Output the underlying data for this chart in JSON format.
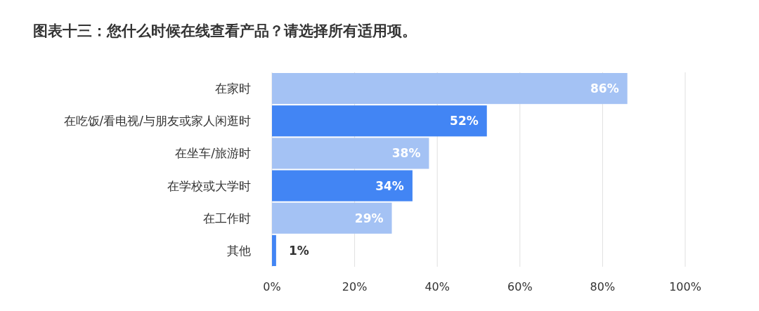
{
  "chart_data": {
    "type": "bar",
    "orientation": "horizontal",
    "title": "图表十三：您什么时候在线查看产品？请选择所有适用项。",
    "categories": [
      "在家时",
      "在吃饭/看电视/与朋友或家人闲逛时",
      "在坐车/旅游时",
      "在学校或大学时",
      "在工作时",
      "其他"
    ],
    "values": [
      86,
      52,
      38,
      34,
      29,
      1
    ],
    "colors": [
      "#a4c2f4",
      "#4285f4",
      "#a4c2f4",
      "#4285f4",
      "#a4c2f4",
      "#4285f4"
    ],
    "value_labels": [
      "86%",
      "52%",
      "38%",
      "34%",
      "29%",
      "1%"
    ],
    "xlim": [
      0,
      100
    ],
    "xticks": [
      {
        "value": 0,
        "label": "0%"
      },
      {
        "value": 20,
        "label": "20%"
      },
      {
        "value": 40,
        "label": "40%"
      },
      {
        "value": 60,
        "label": "60%"
      },
      {
        "value": 80,
        "label": "80%"
      },
      {
        "value": 100,
        "label": "100%"
      }
    ],
    "grid": "x"
  }
}
